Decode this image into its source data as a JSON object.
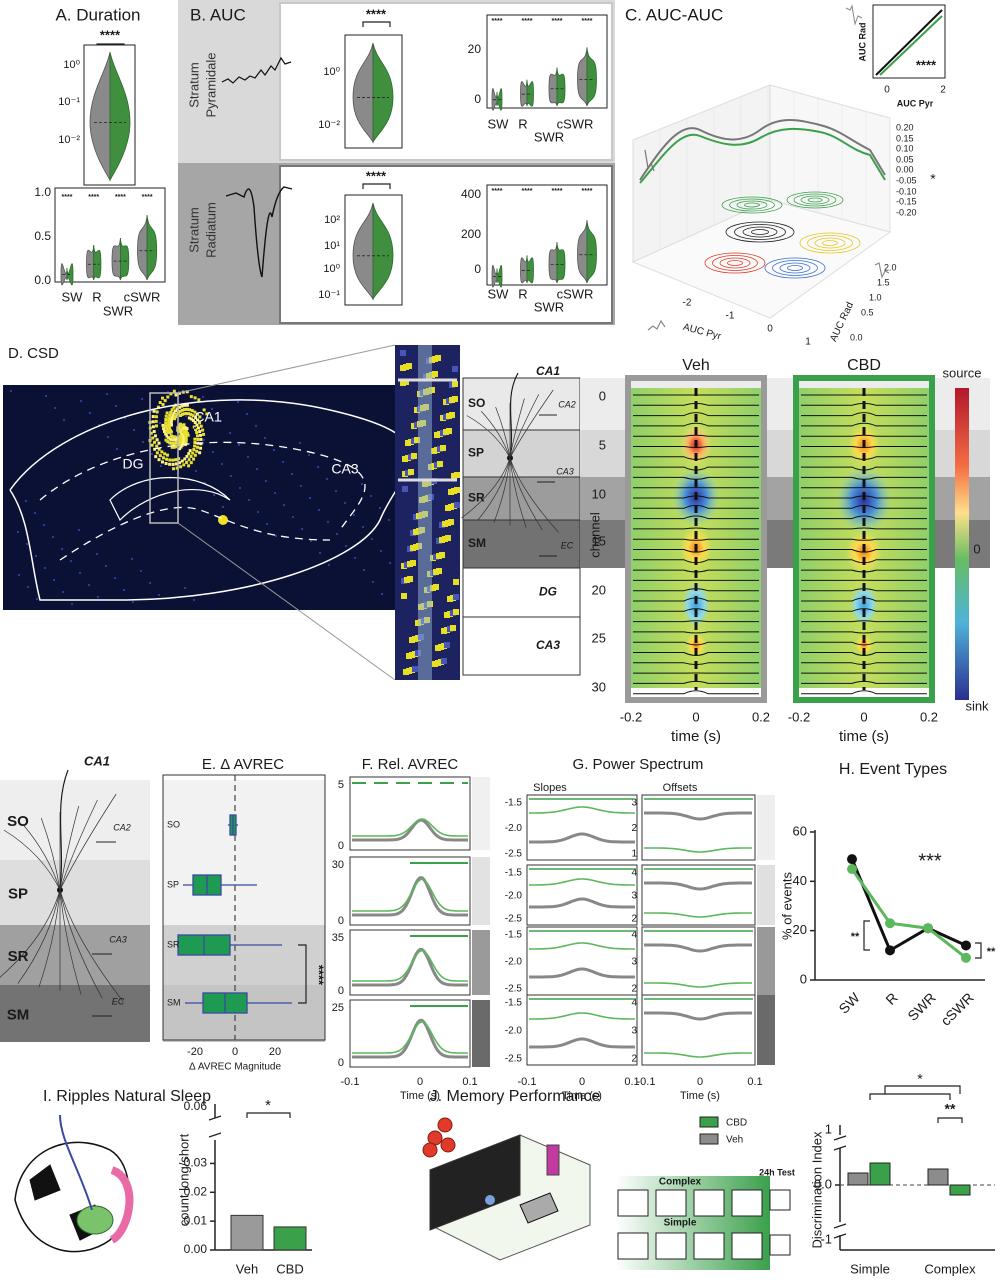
{
  "panels": {
    "A": {
      "title": "A. Duration",
      "sig": "****",
      "violin_ticks": [
        "10⁰",
        "10⁻¹",
        "10⁻²"
      ],
      "ticks": [
        "1.0",
        "0.5",
        "0.0"
      ],
      "pair_sigs": [
        "****",
        "****",
        "****",
        "****"
      ],
      "categories": [
        "SW",
        "R",
        "cSWR"
      ],
      "group": "SWR"
    },
    "B": {
      "title": "B. AUC",
      "pyr": {
        "label": [
          "Stratum",
          "Pyramidale"
        ],
        "sig": "****",
        "violin_ticks": [
          "10⁰",
          "10⁻²"
        ],
        "ticks": [
          "20",
          "0"
        ],
        "pair_sigs": [
          "****",
          "****",
          "****",
          "****"
        ],
        "categories": [
          "SW",
          "R",
          "cSWR"
        ],
        "group": "SWR"
      },
      "rad": {
        "label": [
          "Stratum",
          "Radiatum"
        ],
        "sig": "****",
        "violin_ticks": [
          "10²",
          "10¹",
          "10⁰",
          "10⁻¹"
        ],
        "ticks": [
          "400",
          "200",
          "0"
        ],
        "pair_sigs": [
          "****",
          "****",
          "****",
          "****"
        ],
        "categories": [
          "SW",
          "R",
          "cSWR"
        ],
        "group": "SWR"
      }
    },
    "C": {
      "title": "C. AUC-AUC",
      "inset": {
        "ylabel": "AUC Rad",
        "xlabel": "AUC Pyr",
        "xticks": [
          "0",
          "2"
        ],
        "sig": "****"
      },
      "z_ticks": [
        "0.20",
        "0.15",
        "0.10",
        "0.05",
        "0.00",
        "-0.05",
        "-0.10",
        "-0.15",
        "-0.20"
      ],
      "z_sig": "*",
      "rad_label": "AUC Rad",
      "rad_ticks": [
        "2.0",
        "1.5",
        "1.0",
        "0.5",
        "0.0"
      ],
      "pyr_label": "AUC Pyr",
      "pyr_ticks": [
        "-2",
        "-1",
        "0",
        "1"
      ]
    },
    "D": {
      "title": "D. CSD",
      "regions": [
        "CA1",
        "DG",
        "CA3"
      ],
      "diagram_title": "CA1",
      "layers": [
        "SO",
        "SP",
        "SR",
        "SM",
        "DG",
        "CA3"
      ],
      "inputs": [
        "CA2",
        "CA3",
        "EC"
      ],
      "groups": [
        "Veh",
        "CBD"
      ],
      "channel_label": "channel",
      "channel_ticks": [
        "0",
        "5",
        "10",
        "15",
        "20",
        "25",
        "30"
      ],
      "time_ticks": [
        "-0.2",
        "0",
        "0.2"
      ],
      "time_label": "time (s)",
      "colorbar": [
        "source",
        "0",
        "sink"
      ]
    },
    "E": {
      "title": "E. Δ AVREC",
      "diagram_title": "CA1",
      "layers": [
        "SO",
        "SP",
        "SR",
        "SM"
      ],
      "inputs": [
        "CA2",
        "CA3",
        "EC"
      ],
      "rows": [
        "SO",
        "SP",
        "SR",
        "SM"
      ],
      "xticks": [
        "-20",
        "0",
        "20"
      ],
      "xlabel": "Δ  AVREC Magnitude",
      "sig": "****"
    },
    "F": {
      "title": "F. Rel. AVREC",
      "yticks": [
        [
          "5",
          "0"
        ],
        [
          "30",
          "0"
        ],
        [
          "35",
          "0"
        ],
        [
          "25",
          "0"
        ]
      ],
      "xticks": [
        "-0.1",
        "0",
        "0.1"
      ],
      "xlabel": "Time (s)"
    },
    "G": {
      "title": "G. Power Spectrum",
      "slopes": {
        "label": "Slopes",
        "yticks": [
          [
            "-1.5",
            "-2.0",
            "-2.5"
          ],
          [
            "-1.5",
            "-2.0",
            "-2.5"
          ],
          [
            "-1.5",
            "-2.0",
            "-2.5"
          ],
          [
            "-1.5",
            "-2.0",
            "-2.5"
          ]
        ]
      },
      "offsets": {
        "label": "Offsets",
        "yticks": [
          [
            "3",
            "2",
            "1"
          ],
          [
            "4",
            "3",
            "2"
          ],
          [
            "4",
            "3",
            "2"
          ],
          [
            "4",
            "3",
            "2"
          ]
        ]
      },
      "xticks": [
        "-0.1",
        "0",
        "0.1"
      ],
      "xlabel": "Time (s)"
    },
    "J": {
      "title": "J. Memory Performance",
      "diagram": [
        "Complex",
        "Simple"
      ],
      "test": "24h Test"
    }
  },
  "chart_data": [
    {
      "type": "line",
      "title": "H. Event Types",
      "ylabel": "% of events",
      "categories": [
        "SW",
        "R",
        "SWR",
        "cSWR"
      ],
      "series": [
        {
          "color": "#111111",
          "values": [
            49,
            12,
            21,
            14
          ]
        },
        {
          "color": "#5cb85c",
          "values": [
            45,
            23,
            21,
            9
          ]
        }
      ],
      "ylim": [
        0,
        60
      ],
      "yticks": [
        0,
        20,
        40,
        60
      ],
      "annotations": [
        "***",
        "**",
        "**"
      ]
    },
    {
      "type": "bar",
      "title": "I. Ripples Natural Sleep",
      "ylabel": "count long/short",
      "categories": [
        "Veh",
        "CBD"
      ],
      "values": [
        0.012,
        0.008
      ],
      "colors": [
        "#9a9a9a",
        "#3aa04a"
      ],
      "ylim": [
        0,
        0.035
      ],
      "yticks": [
        {
          "value": 0,
          "label": "0.00"
        },
        {
          "value": 0.01,
          "label": "0.01"
        },
        {
          "value": 0.02,
          "label": "0.02"
        },
        {
          "value": 0.03,
          "label": "0.03"
        }
      ],
      "break_label": "0.06",
      "annotations": [
        "*"
      ]
    },
    {
      "type": "grouped_bar",
      "ylabel": "Discrimination Index",
      "categories": [
        "Simple",
        "Complex"
      ],
      "series": [
        {
          "name": "Veh",
          "color": "#8c8c8c",
          "values": [
            0.06,
            0.08
          ]
        },
        {
          "name": "CBD",
          "color": "#3aa04a",
          "values": [
            0.11,
            -0.05
          ]
        }
      ],
      "legend_order": [
        1,
        0
      ],
      "ylim": [
        -0.2,
        0.2
      ],
      "yticks": [
        {
          "value": 0,
          "label": "0.0"
        }
      ],
      "break_labels": [
        "1",
        "-1"
      ],
      "annotations": [
        "*",
        "**"
      ]
    }
  ]
}
